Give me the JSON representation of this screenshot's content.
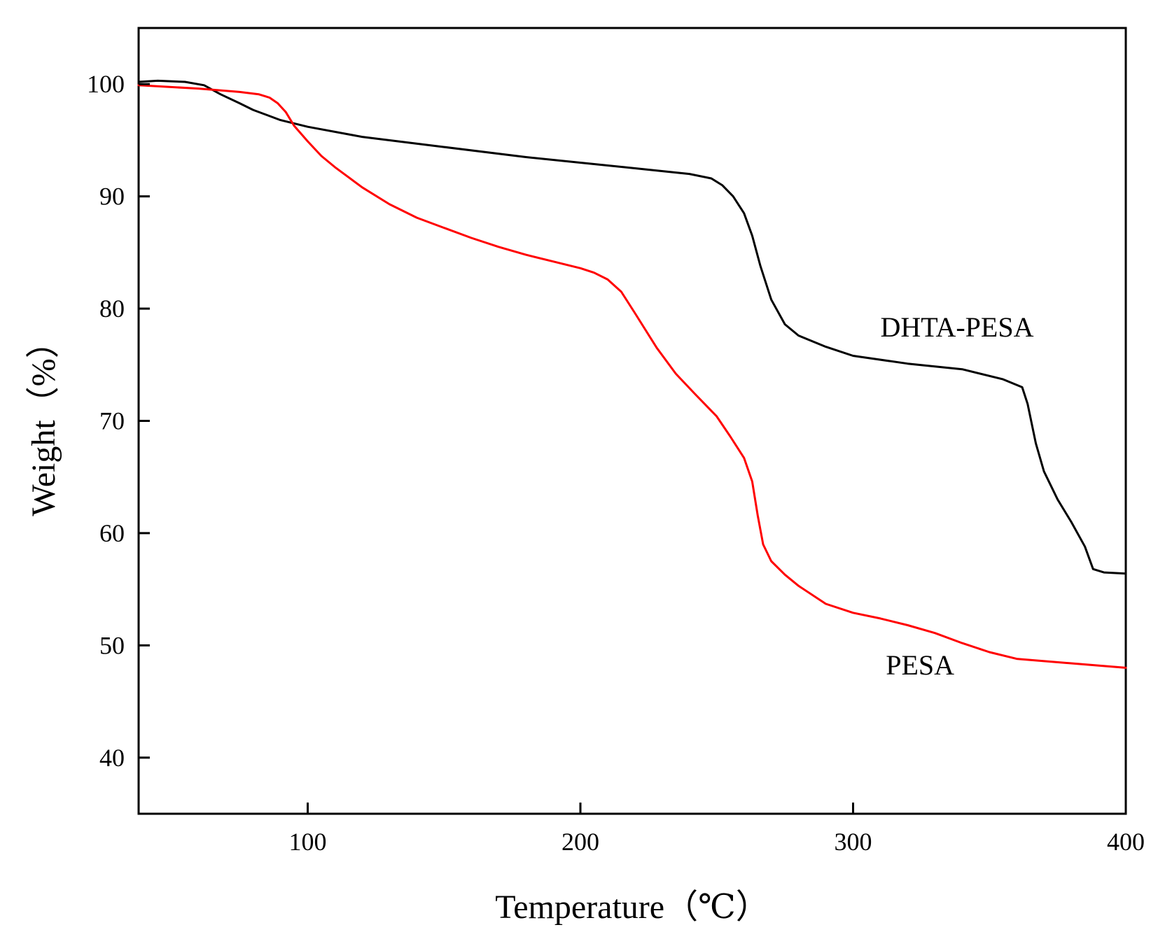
{
  "chart_data": {
    "type": "line",
    "title": "",
    "xlabel": "Temperature（℃）",
    "ylabel": "Weight（%）",
    "xlim": [
      38,
      400
    ],
    "ylim": [
      35,
      105
    ],
    "xticks": [
      100,
      200,
      300,
      400
    ],
    "yticks": [
      40,
      50,
      60,
      70,
      80,
      90,
      100
    ],
    "grid": false,
    "series": [
      {
        "name": "DHTA-PESA",
        "color": "#000000",
        "label_at": [
          310,
          77.5
        ],
        "x": [
          38,
          45,
          55,
          62,
          68,
          75,
          80,
          90,
          100,
          120,
          150,
          180,
          200,
          220,
          240,
          248,
          252,
          256,
          260,
          263,
          266,
          270,
          275,
          280,
          290,
          300,
          320,
          340,
          355,
          362,
          364,
          367,
          370,
          375,
          380,
          385,
          388,
          392,
          400
        ],
        "y": [
          100.2,
          100.3,
          100.2,
          99.9,
          99.1,
          98.3,
          97.7,
          96.8,
          96.2,
          95.3,
          94.4,
          93.5,
          93.0,
          92.5,
          92.0,
          91.6,
          91.0,
          90.0,
          88.5,
          86.5,
          83.8,
          80.8,
          78.6,
          77.6,
          76.6,
          75.8,
          75.1,
          74.6,
          73.7,
          73.0,
          71.5,
          68.0,
          65.5,
          63.0,
          61.0,
          58.8,
          56.8,
          56.5,
          56.4
        ]
      },
      {
        "name": "PESA",
        "color": "#ff0000",
        "label_at": [
          312,
          47.4
        ],
        "x": [
          38,
          60,
          75,
          82,
          86,
          89,
          92,
          95,
          100,
          105,
          110,
          120,
          130,
          140,
          150,
          160,
          170,
          180,
          190,
          200,
          205,
          210,
          215,
          220,
          228,
          235,
          242,
          250,
          255,
          260,
          263,
          265,
          267,
          270,
          275,
          280,
          290,
          300,
          310,
          320,
          330,
          340,
          350,
          360,
          380,
          400
        ],
        "y": [
          99.9,
          99.6,
          99.3,
          99.1,
          98.8,
          98.3,
          97.5,
          96.3,
          94.9,
          93.6,
          92.6,
          90.8,
          89.3,
          88.1,
          87.2,
          86.3,
          85.5,
          84.8,
          84.2,
          83.6,
          83.2,
          82.6,
          81.5,
          79.6,
          76.5,
          74.2,
          72.4,
          70.4,
          68.6,
          66.7,
          64.6,
          61.6,
          59.0,
          57.5,
          56.3,
          55.3,
          53.7,
          52.9,
          52.4,
          51.8,
          51.1,
          50.2,
          49.4,
          48.8,
          48.4,
          48.0
        ]
      }
    ]
  }
}
